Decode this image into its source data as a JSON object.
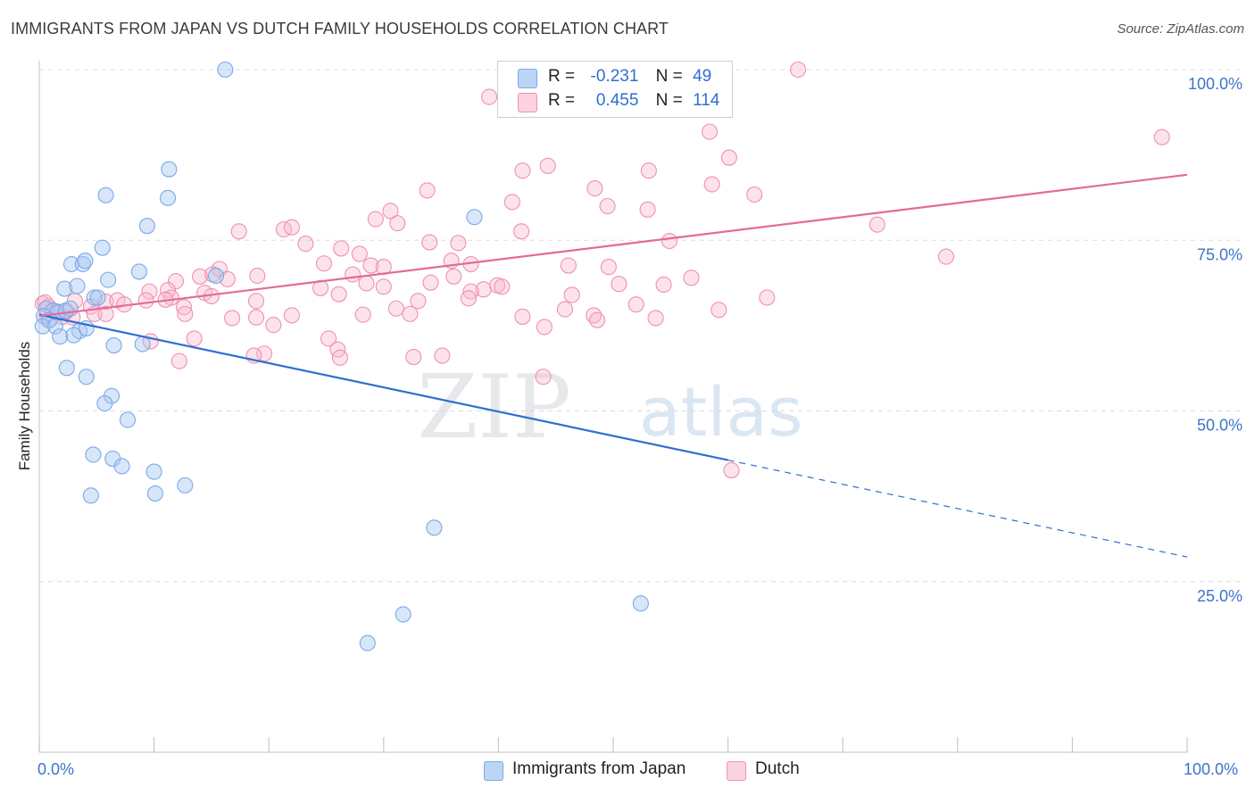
{
  "header": {
    "title": "IMMIGRANTS FROM JAPAN VS DUTCH FAMILY HOUSEHOLDS CORRELATION CHART",
    "source": "Source: ZipAtlas.com"
  },
  "watermark": {
    "zip": "ZIP",
    "atlas": "atlas"
  },
  "legend_top": {
    "rows": [
      {
        "r_label": "R =",
        "r_value": "-0.231",
        "n_label": "N =",
        "n_value": "49",
        "color": "#a9c8f2"
      },
      {
        "r_label": "R =",
        "r_value": "0.455",
        "n_label": "N =",
        "n_value": "114",
        "color": "#f7b8cc"
      }
    ]
  },
  "legend_bottom": {
    "items": [
      {
        "label": "Immigrants from Japan",
        "color": "#a9c8f2"
      },
      {
        "label": "Dutch",
        "color": "#f7b8cc"
      }
    ]
  },
  "x_tick_labels": {
    "left": "0.0%",
    "right": "100.0%"
  },
  "chart_data": {
    "type": "scatter",
    "title": "IMMIGRANTS FROM JAPAN VS DUTCH FAMILY HOUSEHOLDS CORRELATION CHART",
    "xlabel": "",
    "ylabel": "Family Households",
    "xlim": [
      0,
      100
    ],
    "ylim": [
      0,
      100
    ],
    "y_ticks": [
      25,
      50,
      75,
      100
    ],
    "y_tick_labels": [
      "25.0%",
      "50.0%",
      "75.0%",
      "100.0%"
    ],
    "x_tick_labels": [
      "0.0%",
      "100.0%"
    ],
    "grid": true,
    "legend_position": "top-center",
    "series": [
      {
        "name": "Immigrants from Japan",
        "color": "#7aa9e8",
        "line_color": "#2f6fd0",
        "r": -0.231,
        "n": 49,
        "trend": {
          "x0": 0,
          "y0": 64.1,
          "x1": 60,
          "y1": 42.8,
          "dashed_to_x": 100,
          "dashed_to_y": 28.6
        },
        "points": [
          [
            16.2,
            100
          ],
          [
            43.4,
            100
          ],
          [
            11.3,
            85.4
          ],
          [
            5.8,
            81.6
          ],
          [
            11.2,
            81.2
          ],
          [
            9.4,
            77.1
          ],
          [
            37.9,
            78.4
          ],
          [
            5.5,
            73.9
          ],
          [
            2.8,
            71.5
          ],
          [
            3.8,
            71.5
          ],
          [
            4,
            72
          ],
          [
            8.7,
            70.4
          ],
          [
            6,
            69.2
          ],
          [
            15.4,
            69.8
          ],
          [
            2.2,
            67.9
          ],
          [
            3.3,
            68.3
          ],
          [
            4.8,
            66.6
          ],
          [
            5.1,
            66.6
          ],
          [
            0.6,
            65
          ],
          [
            1.2,
            64.7
          ],
          [
            1.6,
            64.4
          ],
          [
            2.3,
            64.7
          ],
          [
            2.7,
            65
          ],
          [
            0.4,
            63.9
          ],
          [
            0.9,
            63.3
          ],
          [
            0.3,
            62.4
          ],
          [
            1.4,
            62.4
          ],
          [
            3.5,
            61.7
          ],
          [
            4.1,
            62.1
          ],
          [
            1.8,
            60.9
          ],
          [
            3,
            61.1
          ],
          [
            6.5,
            59.6
          ],
          [
            9,
            59.8
          ],
          [
            2.4,
            56.3
          ],
          [
            4.1,
            55
          ],
          [
            6.3,
            52.2
          ],
          [
            5.7,
            51.1
          ],
          [
            7.7,
            48.7
          ],
          [
            4.7,
            43.6
          ],
          [
            6.4,
            43
          ],
          [
            7.2,
            41.9
          ],
          [
            10,
            41.1
          ],
          [
            12.7,
            39.1
          ],
          [
            4.5,
            37.6
          ],
          [
            10.1,
            37.9
          ],
          [
            34.4,
            32.9
          ],
          [
            52.4,
            21.8
          ],
          [
            31.7,
            20.2
          ],
          [
            28.6,
            16
          ]
        ]
      },
      {
        "name": "Dutch",
        "color": "#f08fb0",
        "line_color": "#e36b97",
        "r": 0.455,
        "n": 114,
        "trend": {
          "x0": 0,
          "y0": 63.9,
          "x1": 100,
          "y1": 84.6
        },
        "points": [
          [
            66.1,
            100
          ],
          [
            39.2,
            96
          ],
          [
            41.6,
            100
          ],
          [
            58.4,
            90.9
          ],
          [
            60.1,
            87.1
          ],
          [
            97.8,
            90.1
          ],
          [
            44.3,
            85.9
          ],
          [
            42.1,
            85.2
          ],
          [
            53.1,
            85.2
          ],
          [
            48.4,
            82.6
          ],
          [
            58.6,
            83.2
          ],
          [
            62.3,
            81.7
          ],
          [
            33.8,
            82.3
          ],
          [
            41.2,
            80.6
          ],
          [
            49.5,
            80
          ],
          [
            53,
            79.5
          ],
          [
            30.6,
            79.3
          ],
          [
            29.3,
            78.1
          ],
          [
            31.2,
            77.5
          ],
          [
            73,
            77.3
          ],
          [
            21.3,
            76.6
          ],
          [
            22,
            76.9
          ],
          [
            42,
            76.3
          ],
          [
            17.4,
            76.3
          ],
          [
            54.9,
            74.9
          ],
          [
            34,
            74.7
          ],
          [
            36.5,
            74.6
          ],
          [
            23.2,
            74.5
          ],
          [
            26.3,
            73.8
          ],
          [
            27.9,
            73
          ],
          [
            79,
            72.6
          ],
          [
            24.8,
            71.6
          ],
          [
            35.9,
            72
          ],
          [
            37.6,
            71.5
          ],
          [
            46.1,
            71.3
          ],
          [
            49.6,
            71.1
          ],
          [
            28.9,
            71.3
          ],
          [
            30,
            71.1
          ],
          [
            15.7,
            70.8
          ],
          [
            27.3,
            70
          ],
          [
            14,
            69.7
          ],
          [
            16.4,
            69.3
          ],
          [
            15.1,
            70
          ],
          [
            11.9,
            69
          ],
          [
            36.1,
            69.7
          ],
          [
            19,
            69.8
          ],
          [
            56.8,
            69.5
          ],
          [
            54.4,
            68.5
          ],
          [
            28.5,
            68.7
          ],
          [
            34.1,
            68.8
          ],
          [
            38.7,
            67.8
          ],
          [
            37.6,
            67.5
          ],
          [
            9.6,
            67.5
          ],
          [
            24.5,
            68
          ],
          [
            30,
            68.2
          ],
          [
            39.9,
            68.4
          ],
          [
            40.3,
            68.2
          ],
          [
            50.5,
            68.6
          ],
          [
            11.2,
            67.7
          ],
          [
            14.4,
            67.3
          ],
          [
            26.1,
            67.1
          ],
          [
            9.3,
            66.2
          ],
          [
            46.4,
            67
          ],
          [
            63.4,
            66.6
          ],
          [
            11.5,
            66.6
          ],
          [
            18.9,
            66.1
          ],
          [
            33,
            66.1
          ],
          [
            37.4,
            66.5
          ],
          [
            11,
            66.3
          ],
          [
            3.1,
            66.1
          ],
          [
            5.8,
            66
          ],
          [
            6.8,
            66.2
          ],
          [
            15,
            66.8
          ],
          [
            0.3,
            65.7
          ],
          [
            0.8,
            65.3
          ],
          [
            7.4,
            65.6
          ],
          [
            12.6,
            65.2
          ],
          [
            52,
            65.6
          ],
          [
            4.5,
            65.3
          ],
          [
            31.1,
            65
          ],
          [
            45.8,
            64.9
          ],
          [
            4.8,
            64.2
          ],
          [
            5.8,
            64.2
          ],
          [
            12.7,
            64.2
          ],
          [
            16.8,
            63.6
          ],
          [
            18.9,
            63.7
          ],
          [
            22,
            64
          ],
          [
            28.2,
            64.1
          ],
          [
            32.3,
            64.2
          ],
          [
            42.1,
            63.8
          ],
          [
            48.3,
            64
          ],
          [
            53.7,
            63.6
          ],
          [
            48.6,
            63.3
          ],
          [
            44,
            62.3
          ],
          [
            20.4,
            62.6
          ],
          [
            0.8,
            63.3
          ],
          [
            2,
            63.8
          ],
          [
            2.9,
            63.7
          ],
          [
            25.2,
            60.6
          ],
          [
            13.5,
            60.6
          ],
          [
            9.7,
            60.2
          ],
          [
            26,
            59
          ],
          [
            19.6,
            58.4
          ],
          [
            26.2,
            57.8
          ],
          [
            18.7,
            58.1
          ],
          [
            32.6,
            57.9
          ],
          [
            35.1,
            58.1
          ],
          [
            12.2,
            57.3
          ],
          [
            43.9,
            55
          ],
          [
            60.3,
            41.3
          ],
          [
            0.5,
            65.9
          ],
          [
            1.5,
            64.6
          ],
          [
            2.3,
            64.5
          ],
          [
            59.2,
            64.8
          ]
        ]
      }
    ]
  }
}
